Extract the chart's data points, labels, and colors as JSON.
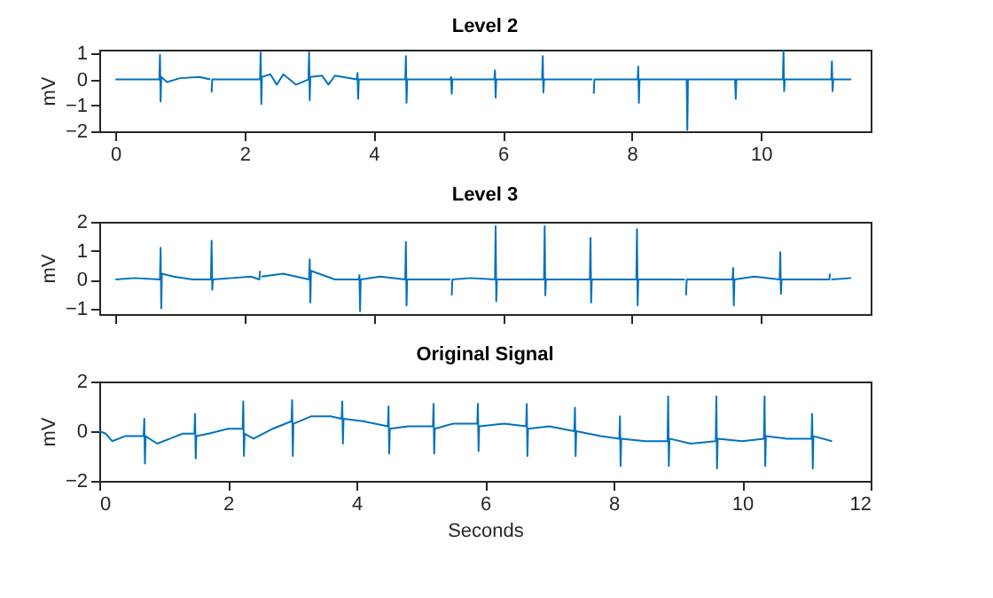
{
  "chart_data": [
    {
      "type": "line",
      "title": "Level 2",
      "ylabel": "mV",
      "xlim": [
        -0.25,
        11.7
      ],
      "xticks": [
        0,
        2,
        4,
        6,
        8,
        10
      ],
      "ylim": [
        -2,
        1.15
      ],
      "yticks": [
        -2,
        -1,
        0,
        1
      ],
      "grid": false,
      "series": [
        {
          "color": "#0072bd",
          "x": [
            0,
            0.3,
            0.68,
            0.69,
            0.7,
            0.71,
            0.8,
            1.0,
            1.3,
            1.47,
            1.48,
            1.49,
            1.5,
            1.6,
            2.0,
            2.24,
            2.25,
            2.26,
            2.27,
            2.4,
            2.5,
            2.6,
            2.8,
            2.99,
            3.0,
            3.01,
            3.02,
            3.2,
            3.3,
            3.4,
            3.74,
            3.75,
            3.76,
            3.77,
            4.0,
            4.49,
            4.5,
            4.51,
            4.52,
            4.8,
            5.19,
            5.2,
            5.21,
            5.22,
            5.5,
            5.87,
            5.88,
            5.89,
            5.9,
            6.2,
            6.61,
            6.62,
            6.63,
            6.64,
            7.0,
            7.39,
            7.4,
            7.41,
            7.42,
            7.8,
            8.09,
            8.1,
            8.11,
            8.12,
            8.5,
            8.84,
            8.85,
            8.86,
            8.87,
            9.2,
            9.59,
            9.6,
            9.61,
            9.62,
            10.0,
            10.34,
            10.35,
            10.36,
            10.37,
            10.7,
            11.09,
            11.1,
            11.11,
            11.12,
            11.4
          ],
          "values": [
            0,
            0,
            0,
            0.95,
            -0.85,
            0.1,
            -0.1,
            0.05,
            0.1,
            0,
            null,
            -0.5,
            0,
            0,
            0,
            0,
            1.05,
            -0.95,
            0.1,
            0.2,
            -0.2,
            0.2,
            -0.2,
            0,
            1.05,
            -0.8,
            0.1,
            0.15,
            -0.2,
            0.15,
            0,
            0.25,
            -0.75,
            0,
            0,
            0,
            0.9,
            -0.9,
            0,
            0,
            0,
            0.1,
            -0.55,
            0,
            0,
            0,
            0.35,
            -0.7,
            0,
            0,
            0,
            0.9,
            -0.5,
            0,
            0,
            0,
            null,
            -0.55,
            0,
            0,
            0,
            0.5,
            -0.9,
            0,
            0,
            0,
            0,
            -1.95,
            0,
            0,
            0,
            0,
            -0.75,
            0,
            0,
            0,
            1.1,
            -0.45,
            0,
            0,
            0,
            0.7,
            -0.45,
            0,
            0
          ]
        }
      ]
    },
    {
      "type": "line",
      "title": "Level 3",
      "ylabel": "mV",
      "xlim": [
        -0.25,
        11.7
      ],
      "xticks": [
        0,
        2,
        4,
        6,
        8,
        10
      ],
      "ylim": [
        -1.2,
        2
      ],
      "yticks": [
        -1,
        0,
        1,
        2
      ],
      "tick_labels": "y",
      "grid": false,
      "series": [
        {
          "color": "#0072bd",
          "x": [
            0,
            0.3,
            0.69,
            0.7,
            0.71,
            0.72,
            0.9,
            1.2,
            1.48,
            1.49,
            1.5,
            1.51,
            1.8,
            2.1,
            2.23,
            2.24,
            2.25,
            2.26,
            2.6,
            3.0,
            3.01,
            3.02,
            3.03,
            3.4,
            3.77,
            3.78,
            3.79,
            3.8,
            4.1,
            4.49,
            4.5,
            4.51,
            4.52,
            4.9,
            5.19,
            5.2,
            5.21,
            5.22,
            5.5,
            5.88,
            5.89,
            5.9,
            5.91,
            6.3,
            6.64,
            6.65,
            6.66,
            6.67,
            7.0,
            7.35,
            7.36,
            7.37,
            7.38,
            7.7,
            8.07,
            8.08,
            8.09,
            8.1,
            8.5,
            8.82,
            8.83,
            8.84,
            8.85,
            9.2,
            9.56,
            9.57,
            9.58,
            9.59,
            9.9,
            10.29,
            10.3,
            10.31,
            10.32,
            10.7,
            11.06,
            11.07,
            11.08,
            11.09,
            11.4
          ],
          "values": [
            0,
            0.05,
            0,
            1.1,
            -1.0,
            0.2,
            0.1,
            0,
            0,
            1.35,
            -0.35,
            0,
            0.05,
            0.1,
            0,
            0.3,
            null,
            0.1,
            0.2,
            0,
            0.7,
            -0.8,
            0.3,
            0,
            0,
            0.15,
            -1.1,
            0,
            0.1,
            0,
            1.3,
            -0.9,
            0,
            0,
            0,
            null,
            -0.55,
            0,
            0.05,
            0,
            1.85,
            -0.75,
            0,
            0,
            0,
            1.85,
            -0.55,
            0,
            0,
            0,
            1.45,
            -0.8,
            0,
            0,
            0,
            1.75,
            -0.9,
            0,
            0,
            0,
            null,
            -0.55,
            0,
            0,
            0,
            0.4,
            -0.9,
            0,
            0.1,
            0,
            0.95,
            -0.5,
            0,
            0,
            0,
            0.2,
            null,
            0,
            0.05
          ]
        }
      ]
    },
    {
      "type": "line",
      "title": "Original Signal",
      "xlabel": "Seconds",
      "ylabel": "mV",
      "xlim": [
        0,
        12
      ],
      "xticks": [
        0,
        2,
        4,
        6,
        8,
        10,
        12
      ],
      "ylim": [
        -2,
        2
      ],
      "yticks": [
        -2,
        0,
        2
      ],
      "grid": false,
      "series": [
        {
          "color": "#0072bd",
          "x": [
            0,
            0.1,
            0.2,
            0.4,
            0.69,
            0.7,
            0.71,
            0.72,
            0.9,
            1.1,
            1.3,
            1.48,
            1.49,
            1.5,
            1.51,
            1.7,
            2.0,
            2.23,
            2.24,
            2.25,
            2.26,
            2.4,
            2.7,
            2.99,
            3.0,
            3.01,
            3.02,
            3.3,
            3.6,
            3.77,
            3.78,
            3.79,
            3.8,
            4.1,
            4.49,
            4.5,
            4.51,
            4.52,
            4.8,
            5.19,
            5.2,
            5.21,
            5.22,
            5.5,
            5.88,
            5.89,
            5.9,
            5.91,
            6.3,
            6.64,
            6.65,
            6.66,
            6.67,
            7.0,
            7.39,
            7.4,
            7.41,
            7.42,
            7.8,
            8.09,
            8.1,
            8.11,
            8.12,
            8.5,
            8.84,
            8.85,
            8.86,
            8.87,
            9.2,
            9.59,
            9.6,
            9.61,
            9.62,
            10.0,
            10.34,
            10.35,
            10.36,
            10.37,
            10.7,
            11.08,
            11.09,
            11.1,
            11.11,
            11.4
          ],
          "values": [
            0,
            -0.1,
            -0.4,
            -0.2,
            -0.2,
            0.5,
            -1.3,
            -0.2,
            -0.5,
            -0.3,
            -0.1,
            -0.1,
            0.7,
            -1.1,
            -0.2,
            -0.1,
            0.1,
            0.1,
            1.2,
            -1.0,
            -0.1,
            -0.3,
            0.1,
            0.4,
            1.25,
            -1.0,
            0.3,
            0.6,
            0.6,
            0.5,
            1.2,
            -0.5,
            0.5,
            0.4,
            0.2,
            1.0,
            -0.9,
            0.1,
            0.2,
            0.2,
            1.1,
            -0.9,
            0.1,
            0.3,
            0.3,
            1.1,
            -0.8,
            0.2,
            0.3,
            0.2,
            1.1,
            -1.0,
            0.1,
            0.2,
            0,
            0.95,
            -1.0,
            0,
            -0.2,
            -0.3,
            0.6,
            -1.4,
            -0.3,
            -0.4,
            -0.4,
            1.4,
            -1.4,
            -0.3,
            -0.5,
            -0.4,
            1.4,
            -1.5,
            -0.3,
            -0.4,
            -0.3,
            1.4,
            -1.4,
            -0.2,
            -0.3,
            -0.3,
            0.7,
            -1.5,
            -0.2,
            -0.4
          ]
        }
      ]
    }
  ]
}
